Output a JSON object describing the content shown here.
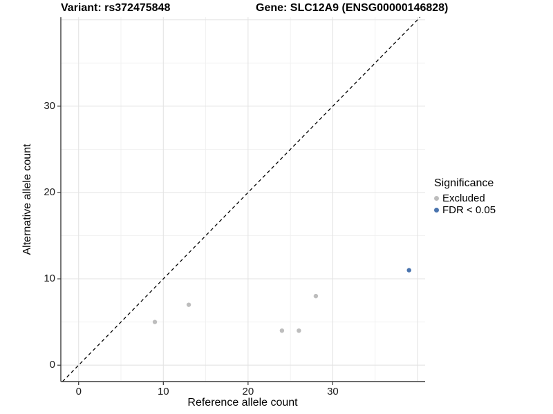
{
  "chart_data": {
    "type": "scatter",
    "title_left": "Variant: rs372475848",
    "title_right": "Gene: SLC12A9 (ENSG00000146828)",
    "xlabel": "Reference allele count",
    "ylabel": "Alternative allele count",
    "xlim": [
      -2.1,
      40.9
    ],
    "ylim": [
      -1.9,
      40.3
    ],
    "x_major_ticks": [
      0,
      10,
      20,
      30
    ],
    "y_major_ticks": [
      0,
      10,
      20,
      30
    ],
    "x_gridlines_major": [
      0,
      10,
      20,
      30,
      40
    ],
    "x_gridlines_minor": [
      5,
      15,
      25,
      35
    ],
    "y_gridlines_major": [
      0,
      10,
      20,
      30,
      40
    ],
    "y_gridlines_minor": [
      5,
      15,
      25,
      35
    ],
    "grid": true,
    "legend_title": "Significance",
    "legend_position": "right",
    "series": [
      {
        "name": "Excluded",
        "color": "#bdbdbd",
        "points": [
          [
            9,
            5
          ],
          [
            13,
            7
          ],
          [
            24,
            4
          ],
          [
            26,
            4
          ],
          [
            28,
            8
          ]
        ]
      },
      {
        "name": "FDR < 0.05",
        "color": "#4a74ae",
        "points": [
          [
            39,
            11
          ]
        ]
      }
    ],
    "identity_line": {
      "equation": "y = x",
      "style": "dashed",
      "color": "#000000"
    }
  },
  "style_colors": {
    "grid_major": "#e3e3e3",
    "grid_minor": "#f0f0f0",
    "axis_line": "#3c3c3c",
    "tick_mark": "#333333"
  }
}
